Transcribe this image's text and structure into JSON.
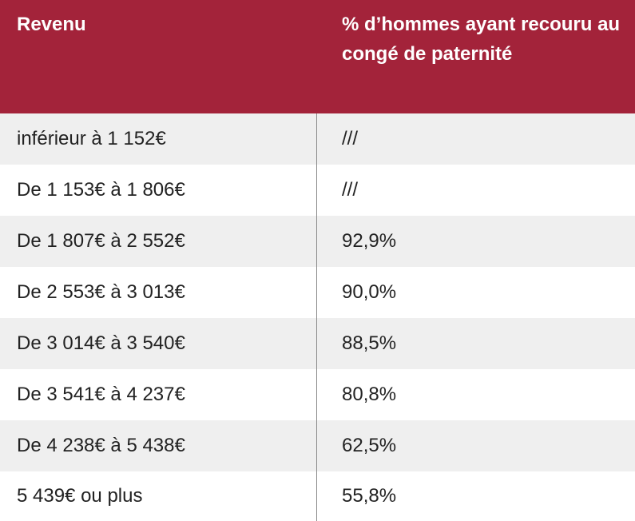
{
  "colors": {
    "header_bg": "#a3233a",
    "row_alt_bg": "#efefef",
    "divider": "#8a8a8a"
  },
  "table": {
    "headers": [
      "Revenu",
      "% d’hommes ayant recouru au congé de paternité"
    ],
    "rows": [
      [
        "inférieur à 1 152€",
        "///"
      ],
      [
        "De 1 153€ à 1 806€",
        "///"
      ],
      [
        "De 1 807€ à 2 552€",
        "92,9%"
      ],
      [
        "De 2 553€ à 3 013€",
        "90,0%"
      ],
      [
        "De 3 014€ à 3 540€",
        "88,5%"
      ],
      [
        "De 3 541€ à 4 237€",
        "80,8%"
      ],
      [
        "De 4 238€ à 5 438€",
        "62,5%"
      ],
      [
        "5 439€ ou plus",
        "55,8%"
      ]
    ]
  }
}
